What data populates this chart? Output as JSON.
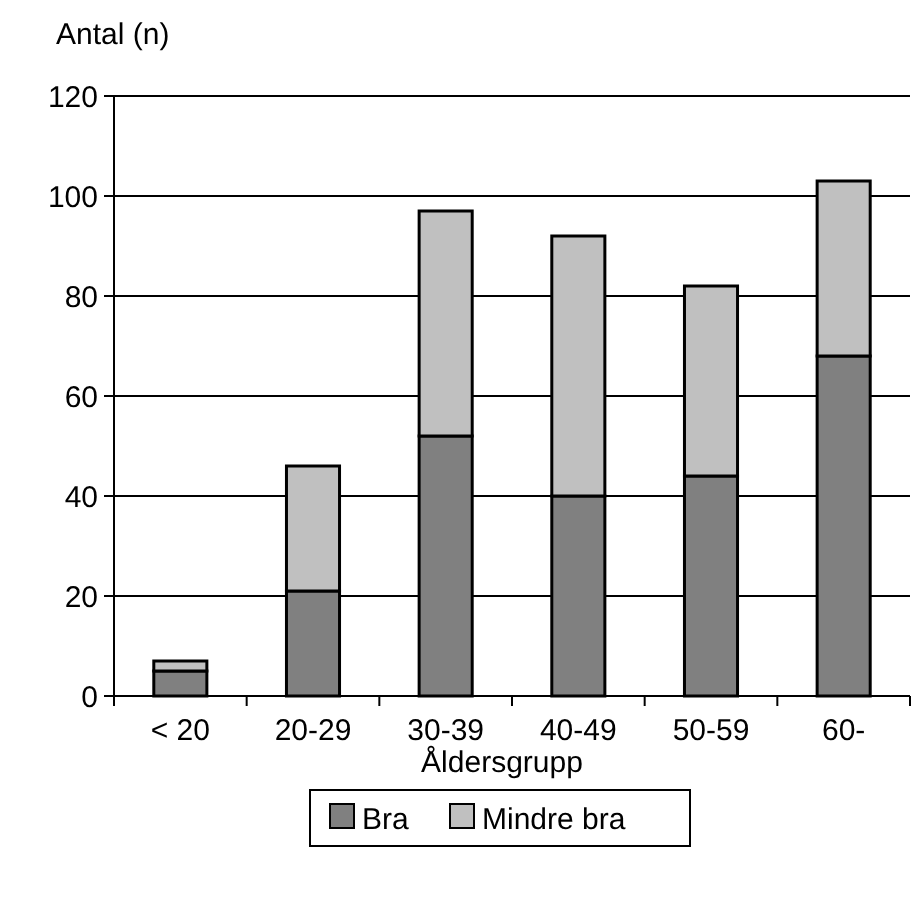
{
  "chart_data": {
    "type": "bar",
    "ylabel": "Antal (n)",
    "xlabel": "Åldersgrupp",
    "categories": [
      "< 20",
      "20-29",
      "30-39",
      "40-49",
      "50-59",
      "60-"
    ],
    "stacked": true,
    "series": [
      {
        "name": "Bra",
        "color": "#808080",
        "values": [
          5,
          21,
          52,
          40,
          44,
          68
        ]
      },
      {
        "name": "Mindre bra",
        "color": "#c0c0c0",
        "values": [
          2,
          25,
          45,
          52,
          38,
          35
        ]
      }
    ],
    "ylim": [
      0,
      120
    ],
    "yticks": [
      0,
      20,
      40,
      60,
      80,
      100,
      120
    ],
    "grid": "y",
    "legend": "bottom"
  }
}
